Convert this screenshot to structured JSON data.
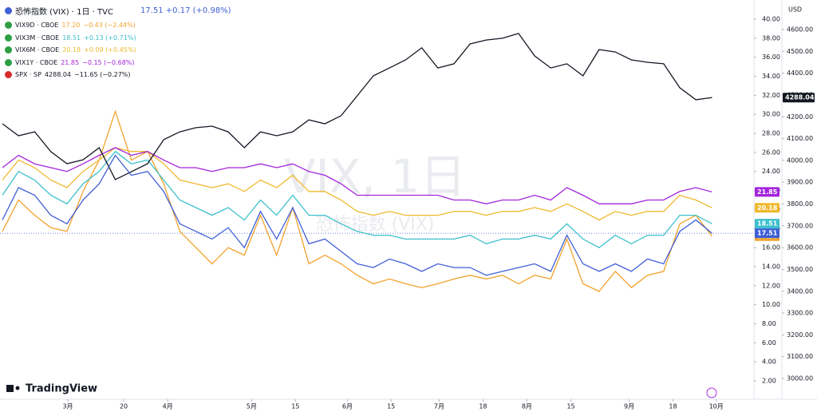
{
  "chart_data": {
    "type": "line",
    "title": "恐怖指数 (VIX) · 1日 · TVC",
    "header_value": "17.51 +0.17 (+0.98%)",
    "currency": "USD",
    "watermark": "VIX, 1日",
    "watermark_sub": "恐怖指数 (VIX)",
    "brand": "TradingView",
    "x": [
      0,
      1,
      2,
      3,
      4,
      5,
      6,
      7,
      8,
      9,
      10,
      11,
      12,
      13,
      14,
      15,
      16,
      17,
      18,
      19,
      20,
      21,
      22,
      23,
      24,
      25,
      26,
      27,
      28,
      29,
      30,
      31,
      32,
      33,
      34,
      35,
      36,
      37,
      38,
      39,
      40,
      41,
      42,
      43,
      44
    ],
    "xlim": [
      -0.15,
      46.6
    ],
    "xticks": [
      {
        "value": 4.06,
        "label": "3月"
      },
      {
        "value": 7.52,
        "label": "20"
      },
      {
        "value": 10.25,
        "label": "4月"
      },
      {
        "value": 15.45,
        "label": "5月"
      },
      {
        "value": 18.17,
        "label": "15"
      },
      {
        "value": 21.39,
        "label": "6月"
      },
      {
        "value": 24.1,
        "label": "15"
      },
      {
        "value": 27.08,
        "label": "7月"
      },
      {
        "value": 29.8,
        "label": "18"
      },
      {
        "value": 32.52,
        "label": "8月"
      },
      {
        "value": 35.25,
        "label": "15"
      },
      {
        "value": 38.86,
        "label": "9月"
      },
      {
        "value": 41.58,
        "label": "18"
      },
      {
        "value": 44.26,
        "label": "10月"
      }
    ],
    "ylim": [
      2,
      40
    ],
    "yticks": [
      {
        "value": 2,
        "label": "2.00"
      },
      {
        "value": 4,
        "label": "4.00"
      },
      {
        "value": 6,
        "label": "6.00"
      },
      {
        "value": 8,
        "label": "8.00"
      },
      {
        "value": 10,
        "label": "10.00"
      },
      {
        "value": 12,
        "label": "12.00"
      },
      {
        "value": 14,
        "label": "14.00"
      },
      {
        "value": 16,
        "label": "16.00"
      },
      {
        "value": 18,
        "label": "18.00"
      },
      {
        "value": 20,
        "label": "20.00"
      },
      {
        "value": 22,
        "label": "22.00"
      },
      {
        "value": 24,
        "label": "24.00"
      },
      {
        "value": 26,
        "label": "26.00"
      },
      {
        "value": 28,
        "label": "28.00"
      },
      {
        "value": 30,
        "label": "30.00"
      },
      {
        "value": 32,
        "label": "32.00"
      },
      {
        "value": 34,
        "label": "34.00"
      },
      {
        "value": 36,
        "label": "36.00"
      },
      {
        "value": 38,
        "label": "38.00"
      },
      {
        "value": 40,
        "label": "40.00"
      }
    ],
    "y2lim": [
      3000,
      4600
    ],
    "y2ticks": [
      {
        "value": 3000,
        "label": "3000.00"
      },
      {
        "value": 3100,
        "label": "3100.00"
      },
      {
        "value": 3200,
        "label": "3200.00"
      },
      {
        "value": 3300,
        "label": "3300.00"
      },
      {
        "value": 3400,
        "label": "3400.00"
      },
      {
        "value": 3500,
        "label": "3500.00"
      },
      {
        "value": 3600,
        "label": "3600.00"
      },
      {
        "value": 3700,
        "label": "3700.00"
      },
      {
        "value": 3800,
        "label": "3800.00"
      },
      {
        "value": 3900,
        "label": "3900.00"
      },
      {
        "value": 4000,
        "label": "4000.00"
      },
      {
        "value": 4100,
        "label": "4100.00"
      },
      {
        "value": 4200,
        "label": "4200.00"
      },
      {
        "value": 4300,
        "label": "4300.00"
      },
      {
        "value": 4400,
        "label": "4400.00"
      },
      {
        "value": 4500,
        "label": "4500.00"
      },
      {
        "value": 4600,
        "label": "4600.00"
      }
    ],
    "series": [
      {
        "name": "VIX9D · CBOE",
        "color": "#f2a22c",
        "last_label": "17.20",
        "change": "−0.43 (−2.44%)",
        "values": [
          17.7,
          21.0,
          19.4,
          18.1,
          17.7,
          21.9,
          25.2,
          30.3,
          25.2,
          26.1,
          22.7,
          17.7,
          16.0,
          14.3,
          16.0,
          15.2,
          19.4,
          15.2,
          20.2,
          14.3,
          15.2,
          14.3,
          13.1,
          12.2,
          12.7,
          12.2,
          11.8,
          12.2,
          12.7,
          13.1,
          12.7,
          13.1,
          12.2,
          13.1,
          12.7,
          16.9,
          12.2,
          11.4,
          13.5,
          11.8,
          13.1,
          13.5,
          18.5,
          19.4,
          17.2
        ]
      },
      {
        "name": "VIX3M · CBOE",
        "color": "#3dbfcc",
        "last_label": "18.51",
        "change": "+0.13 (+0.71%)",
        "values": [
          21.5,
          24.0,
          23.1,
          21.5,
          20.6,
          22.7,
          24.0,
          26.1,
          24.8,
          25.2,
          23.1,
          21.0,
          20.2,
          19.4,
          20.2,
          18.9,
          21.0,
          19.4,
          21.5,
          19.4,
          19.4,
          18.5,
          17.7,
          17.3,
          17.3,
          16.9,
          16.9,
          16.9,
          16.9,
          17.3,
          16.4,
          16.9,
          16.9,
          17.3,
          16.9,
          18.5,
          16.9,
          16.0,
          17.3,
          16.4,
          17.3,
          17.3,
          19.4,
          19.4,
          18.51
        ]
      },
      {
        "name": "VIX6M · CBOE",
        "color": "#f0b92e",
        "last_label": "20.18",
        "change": "+0.09 (+0.45%)",
        "values": [
          23.1,
          25.2,
          24.4,
          23.1,
          22.3,
          24.0,
          25.2,
          26.5,
          26.1,
          26.1,
          24.8,
          23.1,
          22.7,
          22.3,
          22.7,
          21.9,
          23.1,
          22.3,
          23.6,
          21.9,
          21.9,
          21.0,
          19.8,
          19.4,
          19.8,
          19.4,
          19.4,
          19.4,
          19.8,
          19.8,
          19.4,
          19.8,
          19.8,
          20.2,
          19.8,
          20.6,
          19.8,
          18.9,
          19.8,
          19.4,
          19.8,
          19.8,
          21.5,
          21.0,
          20.18
        ]
      },
      {
        "name": "VIX1Y · CBOE",
        "color": "#a425db",
        "last_label": "21.85",
        "change": "−0.15 (−0.68%)",
        "values": [
          24.4,
          25.7,
          24.8,
          24.4,
          24.0,
          24.8,
          25.7,
          26.5,
          25.7,
          26.1,
          25.2,
          24.4,
          24.4,
          24.0,
          24.4,
          24.4,
          24.8,
          24.4,
          24.8,
          24.0,
          23.6,
          22.7,
          21.5,
          21.5,
          21.5,
          21.5,
          21.5,
          21.5,
          21.0,
          21.0,
          20.6,
          21.0,
          21.0,
          21.5,
          21.0,
          22.3,
          21.5,
          20.6,
          20.6,
          20.6,
          21.0,
          21.0,
          21.9,
          22.3,
          21.85
        ]
      },
      {
        "name": "SPX · SP",
        "color": "#131722",
        "axis": "y2",
        "last_label": "4288.04",
        "change": "−11.65 (−0.27%)",
        "values": [
          4168,
          4113,
          4131,
          4040,
          3985,
          4003,
          4058,
          3912,
          3948,
          3985,
          4095,
          4131,
          4150,
          4157,
          4131,
          4058,
          4131,
          4113,
          4131,
          4186,
          4168,
          4205,
          4296,
          4388,
          4424,
          4461,
          4516,
          4424,
          4443,
          4534,
          4552,
          4560,
          4582,
          4479,
          4424,
          4443,
          4388,
          4508,
          4497,
          4461,
          4450,
          4443,
          4333,
          4278,
          4288.04
        ]
      },
      {
        "name": "VIX",
        "color": "#3f5fd6",
        "last_label": "17.51",
        "values": [
          18.9,
          22.3,
          21.5,
          19.4,
          18.5,
          21.0,
          22.7,
          25.7,
          23.6,
          24.0,
          21.9,
          18.5,
          17.7,
          16.9,
          18.1,
          16.0,
          19.8,
          16.9,
          20.2,
          16.4,
          16.9,
          15.6,
          14.3,
          13.9,
          14.8,
          14.3,
          13.5,
          14.3,
          13.9,
          13.9,
          13.1,
          13.5,
          13.9,
          14.3,
          13.5,
          17.3,
          14.3,
          13.5,
          14.3,
          13.5,
          14.8,
          14.3,
          17.7,
          18.9,
          17.51
        ]
      }
    ]
  }
}
